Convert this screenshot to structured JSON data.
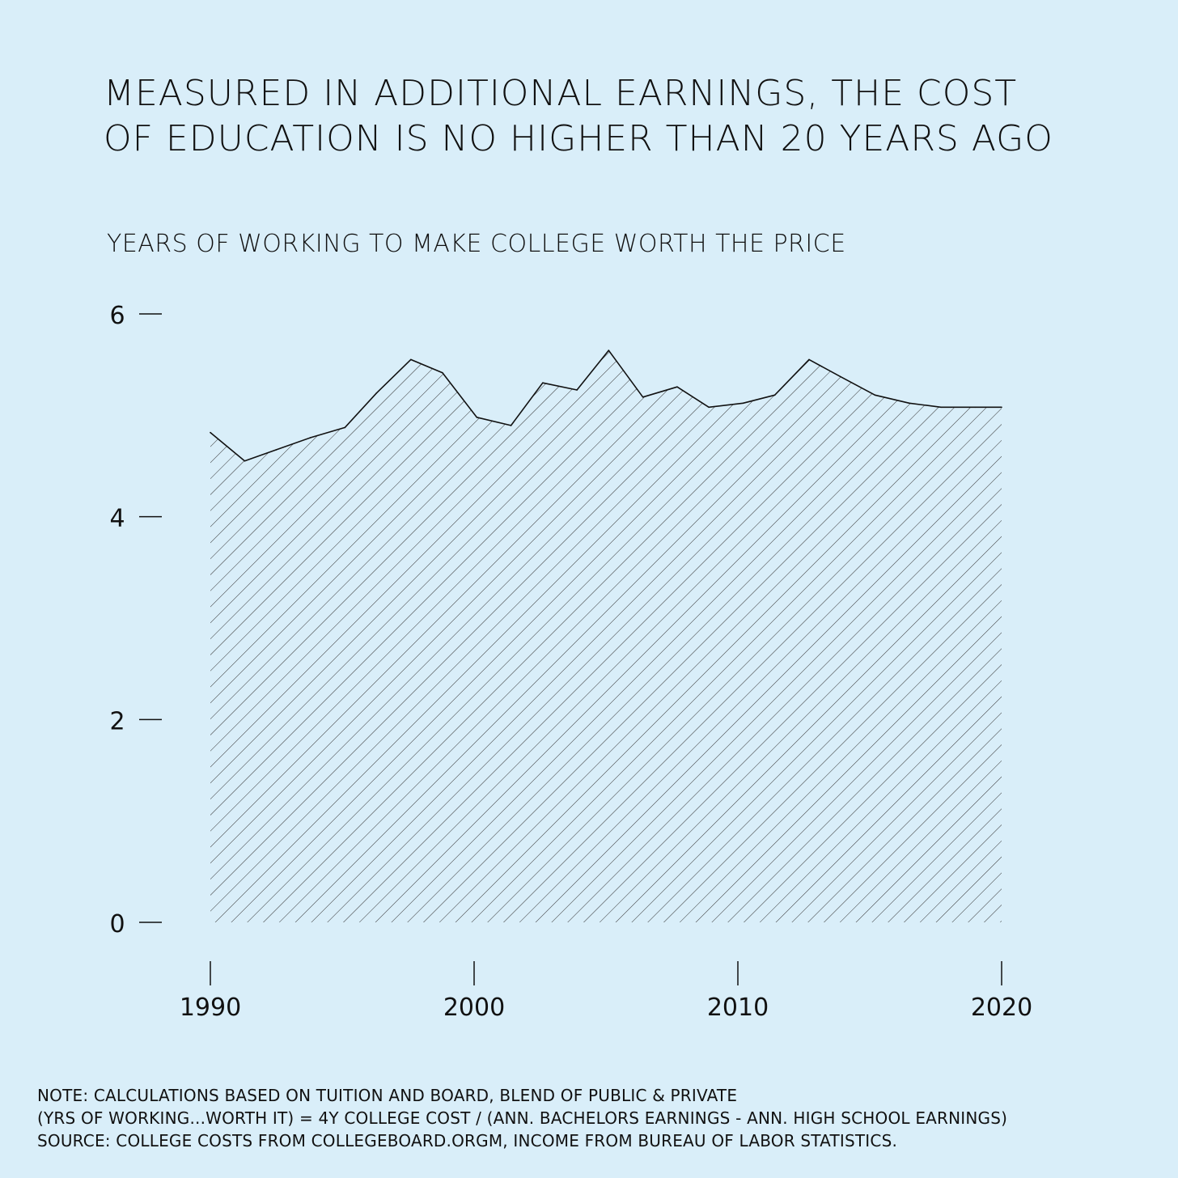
{
  "title_lines": [
    "MEASURED IN ADDITIONAL EARNINGS, THE COST",
    "OF EDUCATION IS NO HIGHER THAN 20 YEARS AGO"
  ],
  "notes": [
    "NOTE: CALCULATIONS BASED ON TUITION AND BOARD, BLEND OF PUBLIC & PRIVATE",
    "(YRS OF WORKING...WORTH IT) = 4Y COLLEGE COST / (ANN. BACHELORS EARNINGS - ANN. HIGH SCHOOL EARNINGS)",
    "SOURCE: COLLEGE COSTS FROM COLLEGEBOARD.ORGM, INCOME FROM BUREAU OF LABOR STATISTICS."
  ],
  "colors": {
    "background": "#d9eef9",
    "ink": "#111111"
  },
  "chart_data": {
    "type": "area",
    "title": "MEASURED IN ADDITIONAL EARNINGS, THE COST OF EDUCATION IS NO HIGHER THAN 20 YEARS AGO",
    "ylabel": "YEARS OF WORKING TO MAKE COLLEGE WORTH THE PRICE",
    "xlabel": "",
    "fill": "diagonal-hatch",
    "grid": false,
    "xlim": [
      1990,
      2020
    ],
    "ylim": [
      0,
      6
    ],
    "x_ticks": [
      1990,
      2000,
      2010,
      2020
    ],
    "y_ticks": [
      0,
      2,
      4,
      6
    ],
    "x": [
      1990,
      1991.3,
      1992.5,
      1993.8,
      1995.1,
      1996.3,
      1997.6,
      1998.8,
      2000.1,
      2001.4,
      2002.6,
      2003.9,
      2005.1,
      2006.4,
      2007.7,
      2008.9,
      2010.2,
      2011.4,
      2012.7,
      2013.9,
      2015.2,
      2016.5,
      2017.7,
      2019.0,
      2020.0
    ],
    "values": [
      4.83,
      4.55,
      4.66,
      4.78,
      4.88,
      5.22,
      5.55,
      5.42,
      4.98,
      4.9,
      5.32,
      5.25,
      5.64,
      5.18,
      5.28,
      5.08,
      5.12,
      5.2,
      5.55,
      5.38,
      5.2,
      5.12,
      5.08,
      5.08,
      5.08
    ]
  }
}
